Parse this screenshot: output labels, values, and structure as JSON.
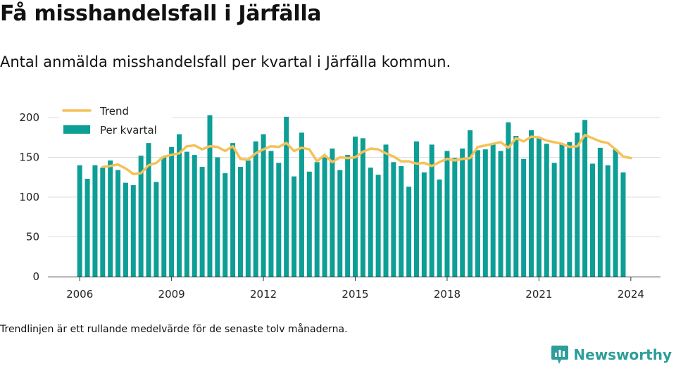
{
  "header": {
    "title": "Få misshandelsfall i Järfälla",
    "subtitle": "Antal anmälda misshandelsfall per kvartal i Järfälla kommun."
  },
  "footer": {
    "note": "Trendlinjen är ett rullande medelvärde för de senaste tolv månaderna.",
    "brand": "Newsworthy"
  },
  "icons": {
    "brand_logo": "bar-chart-speech-bubble-icon"
  },
  "colors": {
    "bars": "#0d9e96",
    "trend": "#f5c158",
    "grid": "#dddddd",
    "brand": "#2e9e9a"
  },
  "chart_data": {
    "type": "bar",
    "x_unit": "quarter",
    "x_start": "2006 Q1",
    "xlim": [
      "2005 Q3",
      "2024 Q4"
    ],
    "ylim": [
      0,
      200
    ],
    "yticks": [
      0,
      50,
      100,
      150,
      200
    ],
    "xticks": [
      2006,
      2009,
      2012,
      2015,
      2018,
      2021,
      2024
    ],
    "grid": "horizontal",
    "legend_position": "top-left",
    "series": [
      {
        "name": "Per kvartal",
        "type": "bar",
        "values": [
          140,
          123,
          140,
          137,
          146,
          134,
          118,
          115,
          152,
          168,
          119,
          151,
          163,
          179,
          157,
          153,
          138,
          203,
          150,
          130,
          168,
          138,
          146,
          170,
          179,
          158,
          143,
          201,
          126,
          181,
          132,
          144,
          150,
          161,
          134,
          153,
          176,
          174,
          137,
          128,
          166,
          144,
          139,
          113,
          170,
          131,
          166,
          122,
          158,
          149,
          161,
          184,
          159,
          160,
          167,
          158,
          194,
          177,
          148,
          184,
          175,
          167,
          143,
          167,
          169,
          181,
          197,
          142,
          162,
          140,
          160,
          131
        ]
      },
      {
        "name": "Trend",
        "type": "line",
        "start_index": 3,
        "values": [
          138,
          139,
          141,
          136,
          129,
          130,
          140,
          143,
          151,
          153,
          155,
          164,
          165,
          160,
          164,
          163,
          158,
          164,
          148,
          147,
          155,
          160,
          164,
          163,
          168,
          158,
          162,
          160,
          145,
          153,
          144,
          150,
          149,
          150,
          157,
          161,
          160,
          155,
          151,
          145,
          145,
          142,
          143,
          139,
          144,
          148,
          146,
          148,
          149,
          163,
          165,
          167,
          169,
          162,
          174,
          170,
          176,
          175,
          171,
          169,
          167,
          163,
          164,
          178,
          174,
          170,
          168,
          160,
          151,
          149
        ]
      }
    ]
  }
}
